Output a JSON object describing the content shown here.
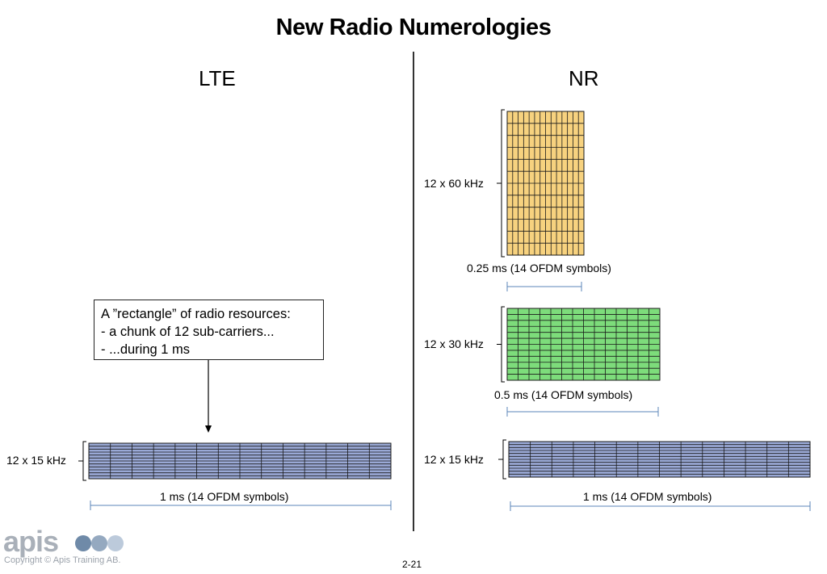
{
  "title": "New Radio Numerologies",
  "lte": {
    "heading": "LTE",
    "callout": {
      "line1": "A ”rectangle” of radio resources:",
      "line2": "- a chunk of 12 sub-carriers...",
      "line3": "- ...during 1 ms"
    },
    "grid": {
      "freq_label": "12 x 15 kHz",
      "time_label": "1 ms (14 OFDM symbols)",
      "subcarriers": 12,
      "symbols": 14,
      "color": "#9aa9d6"
    }
  },
  "nr": {
    "heading": "NR",
    "grids": [
      {
        "freq_label": "12 x 60 kHz",
        "time_label": "0.25 ms (14 OFDM symbols)",
        "subcarriers": 12,
        "symbols": 14,
        "color": "#f7d27f"
      },
      {
        "freq_label": "12 x 30 kHz",
        "time_label": "0.5 ms (14 OFDM symbols)",
        "subcarriers": 12,
        "symbols": 14,
        "color": "#7ddc7b"
      },
      {
        "freq_label": "12 x 15 kHz",
        "time_label": "1 ms (14 OFDM symbols)",
        "subcarriers": 12,
        "symbols": 14,
        "color": "#9aa9d6"
      }
    ]
  },
  "footer": {
    "logo": "apis",
    "copyright": "Copyright © Apis Training AB.",
    "page_number": "2-21",
    "logo_dot_colors": [
      "#6f8aa8",
      "#95a9c0",
      "#bccadb"
    ]
  },
  "colors": {
    "span_line": "#5b86b8",
    "grid_line": "#1a1a1a"
  }
}
